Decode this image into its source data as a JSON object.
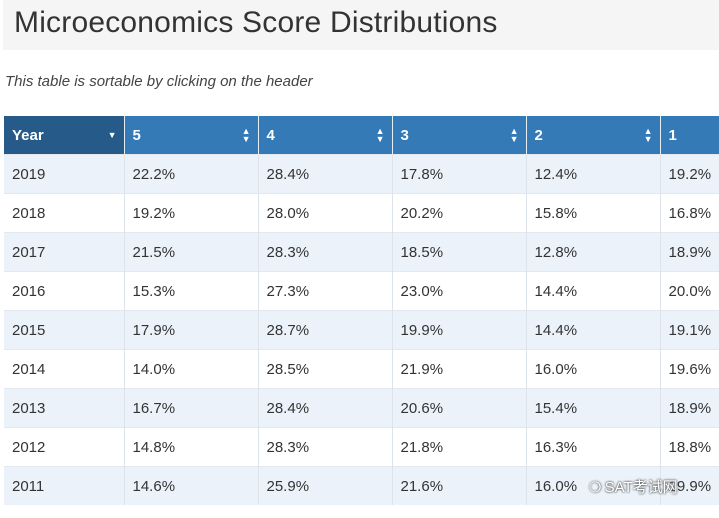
{
  "page": {
    "title": "Microeconomics Score Distributions",
    "note": "This table is sortable by clicking on the header"
  },
  "table": {
    "headers": [
      "Year",
      "5",
      "4",
      "3",
      "2",
      "1"
    ],
    "rows": [
      [
        "2019",
        "22.2%",
        "28.4%",
        "17.8%",
        "12.4%",
        "19.2%"
      ],
      [
        "2018",
        "19.2%",
        "28.0%",
        "20.2%",
        "15.8%",
        "16.8%"
      ],
      [
        "2017",
        "21.5%",
        "28.3%",
        "18.5%",
        "12.8%",
        "18.9%"
      ],
      [
        "2016",
        "15.3%",
        "27.3%",
        "23.0%",
        "14.4%",
        "20.0%"
      ],
      [
        "2015",
        "17.9%",
        "28.7%",
        "19.9%",
        "14.4%",
        "19.1%"
      ],
      [
        "2014",
        "14.0%",
        "28.5%",
        "21.9%",
        "16.0%",
        "19.6%"
      ],
      [
        "2013",
        "16.7%",
        "28.4%",
        "20.6%",
        "15.4%",
        "18.9%"
      ],
      [
        "2012",
        "14.8%",
        "28.3%",
        "21.8%",
        "16.3%",
        "18.8%"
      ],
      [
        "2011",
        "14.6%",
        "25.9%",
        "21.6%",
        "16.0%",
        "19.9%"
      ]
    ]
  },
  "sort_icons": {
    "year": "sort-down-icon",
    "others": "sort-both-icon"
  },
  "colors": {
    "header_bg": "#337ab7",
    "header_sorted_bg": "#265a88",
    "row_alt_bg": "#ebf2fa"
  },
  "watermark": {
    "text": "SAT考试网"
  }
}
